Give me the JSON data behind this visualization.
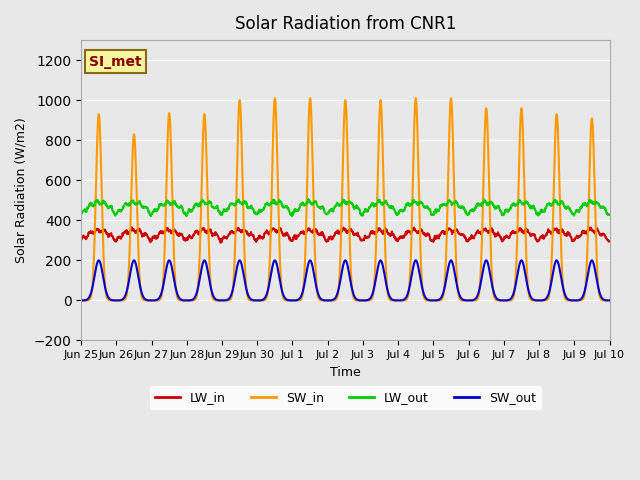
{
  "title": "Solar Radiation from CNR1",
  "xlabel": "Time",
  "ylabel": "Solar Radiation (W/m2)",
  "ylim": [
    -200,
    1300
  ],
  "yticks": [
    -200,
    0,
    200,
    400,
    600,
    800,
    1000,
    1200
  ],
  "background_color": "#e8e8e8",
  "plot_bg_color": "#e8e8e8",
  "grid_color": "white",
  "annotation_text": "SI_met",
  "annotation_color": "#8B0000",
  "annotation_bg": "#f5f5a0",
  "annotation_border": "#8B6914",
  "legend_entries": [
    "LW_in",
    "SW_in",
    "LW_out",
    "SW_out"
  ],
  "line_colors": {
    "LW_in": "#cc0000",
    "SW_in": "#ff9900",
    "LW_out": "#00cc00",
    "SW_out": "#0000cc"
  },
  "line_width": 1.5,
  "n_days": 15,
  "tick_labels": [
    "Jun 25",
    "Jun 26",
    "Jun 27",
    "Jun 28",
    "Jun 29",
    "Jun 30",
    "Jul 1",
    "Jul 2",
    "Jul 3",
    "Jul 4",
    "Jul 5",
    "Jul 6",
    "Jul 7",
    "Jul 8",
    "Jul 9",
    "Jul 10"
  ],
  "tick_positions": [
    0,
    1,
    2,
    3,
    4,
    5,
    6,
    7,
    8,
    9,
    10,
    11,
    12,
    13,
    14,
    15
  ],
  "sw_in_peaks": [
    930,
    830,
    935,
    930,
    1000,
    1010,
    1010,
    1000,
    1000,
    1010,
    1010,
    960,
    960,
    930,
    910
  ],
  "lw_in_base": 300,
  "lw_in_variation": 50,
  "lw_out_base": 430,
  "lw_out_variation": 60,
  "sw_out_peak": 200
}
